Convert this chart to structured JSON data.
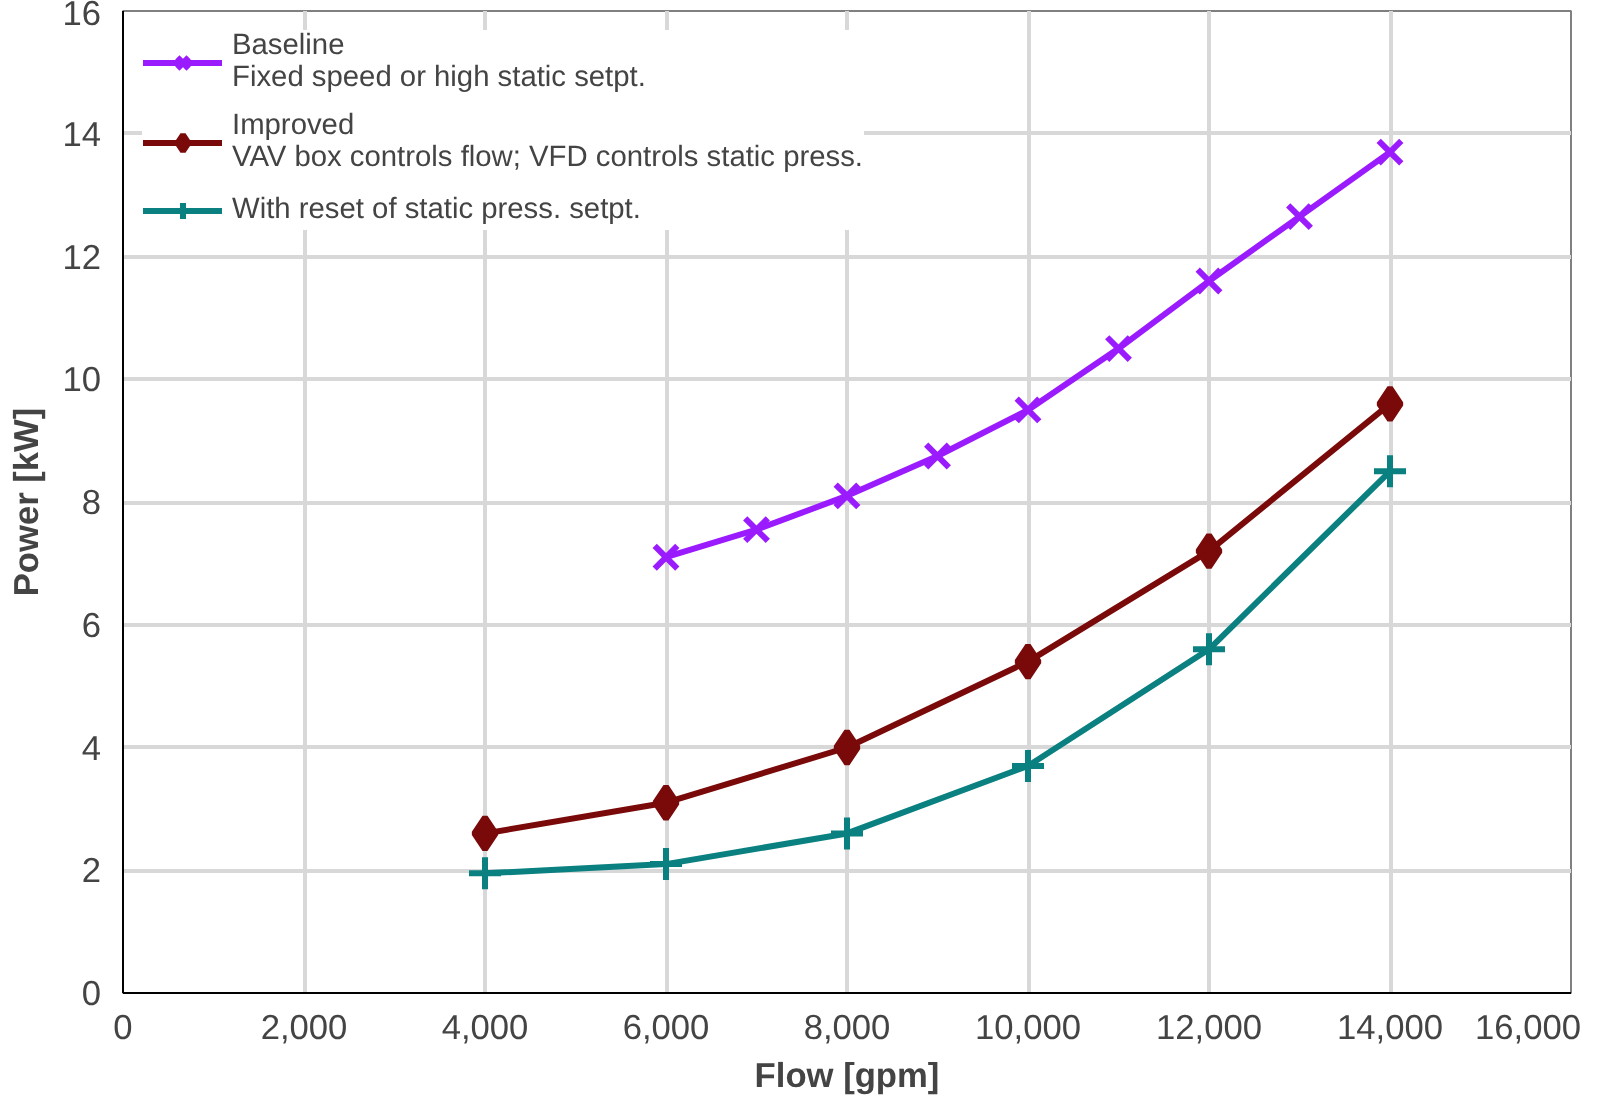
{
  "chart_data": {
    "type": "line",
    "xlabel": "Flow [gpm]",
    "ylabel": "Power [kW]",
    "xlim": [
      0,
      16000
    ],
    "ylim": [
      0,
      16
    ],
    "xticks": [
      {
        "value": 0,
        "label": "0"
      },
      {
        "value": 2000,
        "label": "2,000"
      },
      {
        "value": 4000,
        "label": "4,000"
      },
      {
        "value": 6000,
        "label": "6,000"
      },
      {
        "value": 8000,
        "label": "8,000"
      },
      {
        "value": 10000,
        "label": "10,000"
      },
      {
        "value": 12000,
        "label": "12,000"
      },
      {
        "value": 14000,
        "label": "14,000"
      },
      {
        "value": 16000,
        "label": "16,000"
      }
    ],
    "yticks": [
      0,
      2,
      4,
      6,
      8,
      10,
      12,
      14,
      16
    ],
    "grid": true,
    "legend": "top left",
    "line_style": "solid",
    "series": [
      {
        "name": "Baseline\nFixed speed or high static setpt.",
        "color": "#9b1bff",
        "marker": "cross",
        "x": [
          6000,
          7000,
          8000,
          9000,
          10000,
          11000,
          12000,
          13000,
          14000
        ],
        "values": [
          7.1,
          7.55,
          8.1,
          8.75,
          9.5,
          10.5,
          11.6,
          12.65,
          13.7
        ]
      },
      {
        "name": "Improved\nVAV box controls flow; VFD controls static press.",
        "color": "#7a0a0a",
        "marker": "diamond",
        "x": [
          4000,
          6000,
          8000,
          10000,
          12000,
          14000
        ],
        "values": [
          2.6,
          3.1,
          4.0,
          5.4,
          7.2,
          9.6
        ]
      },
      {
        "name": "With reset of static press. setpt.",
        "color": "#0a8080",
        "marker": "plus",
        "x": [
          4000,
          6000,
          8000,
          10000,
          12000,
          14000
        ],
        "values": [
          1.95,
          2.1,
          2.6,
          3.7,
          5.6,
          8.5
        ]
      }
    ]
  }
}
